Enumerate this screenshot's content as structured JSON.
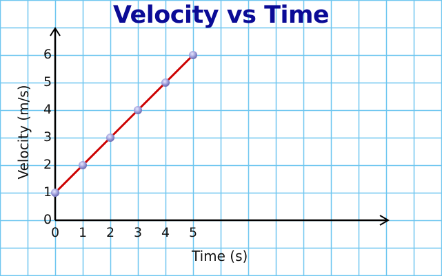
{
  "chart_data": {
    "type": "line",
    "title": "Velocity vs Time",
    "xlabel": "Time (s)",
    "ylabel": "Velocity (m/s)",
    "x": [
      0,
      1,
      2,
      3,
      4,
      5
    ],
    "series": [
      {
        "name": "Velocity",
        "values": [
          1,
          2,
          3,
          4,
          5,
          6
        ]
      }
    ],
    "xticks": [
      "0",
      "1",
      "2",
      "3",
      "4",
      "5"
    ],
    "yticks": [
      "0",
      "1",
      "2",
      "3",
      "4",
      "5",
      "6"
    ],
    "xlim": [
      0,
      6
    ],
    "ylim": [
      0,
      7
    ],
    "grid": true,
    "colors": {
      "line": "#cc0000",
      "marker": "#8a8ad0",
      "title": "#0b0b96",
      "grid": "#6ec6f0"
    }
  }
}
